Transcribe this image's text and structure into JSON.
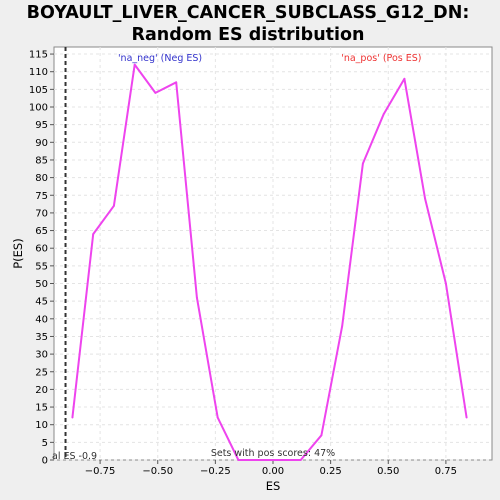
{
  "chart_data": {
    "type": "line",
    "title": "BOYAULT_LIVER_CANCER_SUBCLASS_G12_DN:",
    "subtitle": "Random ES distribution",
    "xlabel": "ES",
    "ylabel": "P(ES)",
    "xlim": [
      -0.95,
      0.95
    ],
    "ylim": [
      0,
      117
    ],
    "x_ticks": [
      -0.75,
      -0.5,
      -0.25,
      0.0,
      0.25,
      0.5,
      0.75
    ],
    "x_tick_labels": [
      "−0.75",
      "−0.50",
      "−0.25",
      "0.00",
      "0.25",
      "0.50",
      "0.75"
    ],
    "y_ticks": [
      0,
      5,
      10,
      15,
      20,
      25,
      30,
      35,
      40,
      45,
      50,
      55,
      60,
      65,
      70,
      75,
      80,
      85,
      90,
      95,
      100,
      105,
      110,
      115
    ],
    "grid": true,
    "series": [
      {
        "color": "#ee44ee",
        "x": [
          -0.87,
          -0.78,
          -0.69,
          -0.6,
          -0.51,
          -0.42,
          -0.33,
          -0.24,
          -0.15,
          -0.06,
          0.03,
          0.12,
          0.21,
          0.3,
          0.39,
          0.48,
          0.57,
          0.66,
          0.75,
          0.84
        ],
        "y": [
          12,
          64,
          72,
          112,
          104,
          107,
          46,
          12,
          0,
          0,
          0,
          0,
          7,
          38,
          84,
          98,
          108,
          74,
          50,
          12
        ]
      }
    ],
    "annotations": {
      "neg_label": "'na_neg' (Neg ES)",
      "pos_label": "'na_pos' (Pos ES)",
      "pos_score_text": "Sets with pos scores: 47%",
      "actual_es_text": "al ES -0.9",
      "actual_es_value": -0.9,
      "neg_color": "#3333cc",
      "pos_color": "#ee3333"
    }
  }
}
